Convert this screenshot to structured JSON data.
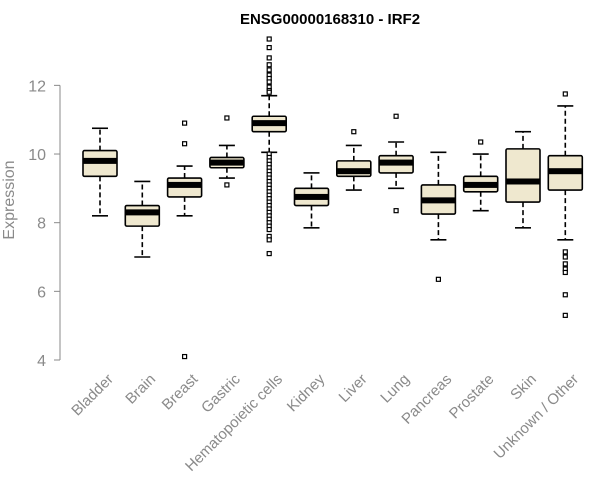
{
  "chart_data": {
    "type": "boxplot",
    "title": "ENSG00000168310 - IRF2",
    "ylabel": "Expression",
    "xlabel": "",
    "ylim": [
      4,
      13.5
    ],
    "yticks": [
      4,
      6,
      8,
      10,
      12
    ],
    "box_fill": "#efe8cf",
    "categories": [
      "Bladder",
      "Brain",
      "Breast",
      "Gastric",
      "Hematopoietic cells",
      "Kidney",
      "Liver",
      "Lung",
      "Pancreas",
      "Prostate",
      "Skin",
      "Unknown / Other"
    ],
    "boxes": [
      {
        "whisker_low": 8.2,
        "q1": 9.35,
        "median": 9.8,
        "q3": 10.1,
        "whisker_high": 10.75,
        "outliers": []
      },
      {
        "whisker_low": 7.0,
        "q1": 7.9,
        "median": 8.3,
        "q3": 8.5,
        "whisker_high": 9.2,
        "outliers": []
      },
      {
        "whisker_low": 8.2,
        "q1": 8.75,
        "median": 9.1,
        "q3": 9.3,
        "whisker_high": 9.65,
        "outliers": [
          10.3,
          10.9,
          4.1
        ]
      },
      {
        "whisker_low": 9.3,
        "q1": 9.6,
        "median": 9.75,
        "q3": 9.9,
        "whisker_high": 10.25,
        "outliers": [
          11.05,
          9.1
        ]
      },
      {
        "whisker_low": 10.05,
        "q1": 10.65,
        "median": 10.9,
        "q3": 11.1,
        "whisker_high": 11.7,
        "outliers": [
          13.35,
          13.1,
          12.8,
          12.6,
          12.45,
          12.3,
          12.2,
          12.1,
          11.95,
          11.85,
          11.8,
          10.0,
          9.9,
          9.8,
          9.7,
          9.6,
          9.5,
          9.4,
          9.3,
          9.2,
          9.1,
          9.0,
          8.9,
          8.8,
          8.7,
          8.6,
          8.5,
          8.4,
          8.3,
          8.2,
          8.1,
          8.0,
          7.9,
          7.8,
          7.6,
          7.5,
          7.1
        ]
      },
      {
        "whisker_low": 7.85,
        "q1": 8.5,
        "median": 8.75,
        "q3": 9.0,
        "whisker_high": 9.45,
        "outliers": []
      },
      {
        "whisker_low": 8.95,
        "q1": 9.35,
        "median": 9.5,
        "q3": 9.8,
        "whisker_high": 10.25,
        "outliers": [
          10.65
        ]
      },
      {
        "whisker_low": 9.0,
        "q1": 9.45,
        "median": 9.75,
        "q3": 9.95,
        "whisker_high": 10.35,
        "outliers": [
          11.1,
          8.35
        ]
      },
      {
        "whisker_low": 7.5,
        "q1": 8.25,
        "median": 8.65,
        "q3": 9.1,
        "whisker_high": 10.05,
        "outliers": [
          6.35
        ]
      },
      {
        "whisker_low": 8.35,
        "q1": 8.9,
        "median": 9.1,
        "q3": 9.35,
        "whisker_high": 10.0,
        "outliers": [
          10.35
        ]
      },
      {
        "whisker_low": 7.85,
        "q1": 8.6,
        "median": 9.2,
        "q3": 10.15,
        "whisker_high": 10.65,
        "outliers": []
      },
      {
        "whisker_low": 7.5,
        "q1": 8.95,
        "median": 9.5,
        "q3": 9.95,
        "whisker_high": 11.4,
        "outliers": [
          11.75,
          7.15,
          7.0,
          6.8,
          6.65,
          6.55,
          5.9,
          5.3
        ]
      }
    ]
  }
}
